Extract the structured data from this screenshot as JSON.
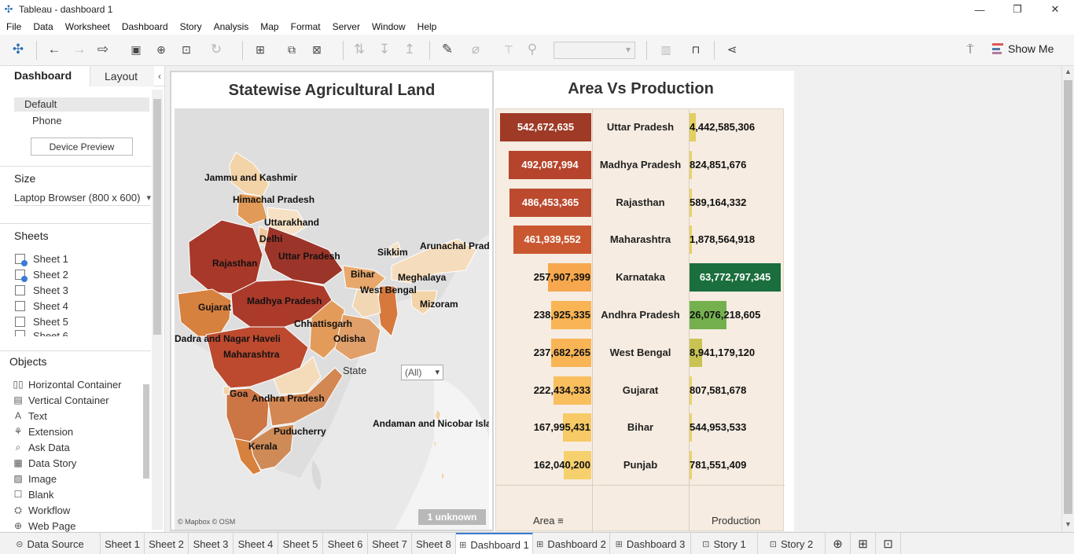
{
  "window": {
    "title": "Tableau - dashboard 1",
    "controls": [
      "—",
      "❐",
      "✕"
    ]
  },
  "menu": [
    "File",
    "Data",
    "Worksheet",
    "Dashboard",
    "Story",
    "Analysis",
    "Map",
    "Format",
    "Server",
    "Window",
    "Help"
  ],
  "toolbar": {
    "show_me_label": "Show Me",
    "accent_colors": [
      "#e15759",
      "#4e79a7",
      "#b07aa1"
    ]
  },
  "left_panel": {
    "tabs": [
      "Dashboard",
      "Layout"
    ],
    "device_options": [
      "Default",
      "Phone"
    ],
    "device_preview_label": "Device Preview",
    "size_heading": "Size",
    "size_value": "Laptop Browser (800 x 600)",
    "sheets_heading": "Sheets",
    "sheets": [
      "Sheet 1",
      "Sheet 2",
      "Sheet 3",
      "Sheet 4",
      "Sheet 5",
      "Sheet 6"
    ],
    "objects_heading": "Objects",
    "objects": [
      {
        "label": "Horizontal Container",
        "icon": "horizontal-container-icon"
      },
      {
        "label": "Vertical Container",
        "icon": "vertical-container-icon"
      },
      {
        "label": "Text",
        "icon": "text-icon"
      },
      {
        "label": "Extension",
        "icon": "extension-icon"
      },
      {
        "label": "Ask Data",
        "icon": "ask-data-icon"
      },
      {
        "label": "Data Story",
        "icon": "data-story-icon"
      },
      {
        "label": "Image",
        "icon": "image-icon"
      },
      {
        "label": "Blank",
        "icon": "blank-icon"
      },
      {
        "label": "Workflow",
        "icon": "workflow-icon"
      },
      {
        "label": "Web Page",
        "icon": "web-page-icon"
      }
    ]
  },
  "map_sheet": {
    "title": "Statewise Agricultural Land",
    "labels": [
      "Jammu and Kashmir",
      "Himachal Pradesh",
      "Uttarakhand",
      "Delhi",
      "Rajasthan",
      "Uttar Pradesh",
      "Sikkim",
      "Arunachal Prad",
      "Bihar",
      "Meghalaya",
      "West Bengal",
      "Gujarat",
      "Madhya Pradesh",
      "Mizoram",
      "Chhattisgarh",
      "Odisha",
      "Dadra and Nagar Haveli",
      "Maharashtra",
      "Goa",
      "Andhra Pradesh",
      "Andaman and Nicobar Isla",
      "Puducherry",
      "Kerala"
    ],
    "filter_label": "State",
    "filter_value": "(All)",
    "unknown_badge": "1 unknown",
    "attribution": "© Mapbox © OSM"
  },
  "avp_sheet": {
    "title": "Area Vs Production",
    "footer": {
      "area": "Area",
      "production": "Production"
    },
    "rows": [
      {
        "state": "Uttar Pradesh",
        "area": "542,672,635",
        "area_value": 542672635,
        "production": "4,442,585,306",
        "production_value": 4442585306,
        "area_color": "#9e3a26",
        "prod_color": "#e2cf5f"
      },
      {
        "state": "Madhya Pradesh",
        "area": "492,087,994",
        "area_value": 492087994,
        "production": "824,851,676",
        "production_value": 824851676,
        "area_color": "#b6442c",
        "prod_color": "#ead36a"
      },
      {
        "state": "Rajasthan",
        "area": "486,453,365",
        "area_value": 486453365,
        "production": "589,164,332",
        "production_value": 589164332,
        "area_color": "#bc4a2e",
        "prod_color": "#ead36a"
      },
      {
        "state": "Maharashtra",
        "area": "461,939,552",
        "area_value": 461939552,
        "production": "1,878,564,918",
        "production_value": 1878564918,
        "area_color": "#c95831",
        "prod_color": "#e6d164"
      },
      {
        "state": "Karnataka",
        "area": "257,907,399",
        "area_value": 257907399,
        "production": "63,772,797,345",
        "production_value": 63772797345,
        "area_color": "#f7a84e",
        "prod_color": "#1b6e3d"
      },
      {
        "state": "Andhra Pradesh",
        "area": "238,925,335",
        "area_value": 238925335,
        "production": "26,076,218,605",
        "production_value": 26076218605,
        "area_color": "#f8b455",
        "prod_color": "#74b14e"
      },
      {
        "state": "West Bengal",
        "area": "237,682,265",
        "area_value": 237682265,
        "production": "8,941,179,120",
        "production_value": 8941179120,
        "area_color": "#f8b455",
        "prod_color": "#c9c452"
      },
      {
        "state": "Gujarat",
        "area": "222,434,333",
        "area_value": 222434333,
        "production": "807,581,678",
        "production_value": 807581678,
        "area_color": "#f9be5e",
        "prod_color": "#ead36a"
      },
      {
        "state": "Bihar",
        "area": "167,995,431",
        "area_value": 167995431,
        "production": "544,953,533",
        "production_value": 544953533,
        "area_color": "#f8ca66",
        "prod_color": "#ead36a"
      },
      {
        "state": "Punjab",
        "area": "162,040,200",
        "area_value": 162040200,
        "production": "781,551,409",
        "production_value": 781551409,
        "area_color": "#f6d06d",
        "prod_color": "#ead36a"
      }
    ]
  },
  "bottom_tabs": [
    {
      "label": "Data Source",
      "icon": "data-source-icon"
    },
    {
      "label": "Sheet 1"
    },
    {
      "label": "Sheet 2"
    },
    {
      "label": "Sheet 3"
    },
    {
      "label": "Sheet 4"
    },
    {
      "label": "Sheet 5"
    },
    {
      "label": "Sheet 6"
    },
    {
      "label": "Sheet 7"
    },
    {
      "label": "Sheet 8"
    },
    {
      "label": "Dashboard 1",
      "icon": "dashboard-icon",
      "active": true
    },
    {
      "label": "Dashboard 2",
      "icon": "dashboard-icon"
    },
    {
      "label": "Dashboard 3",
      "icon": "dashboard-icon"
    },
    {
      "label": "Story 1",
      "icon": "story-icon"
    },
    {
      "label": "Story 2",
      "icon": "story-icon"
    }
  ]
}
